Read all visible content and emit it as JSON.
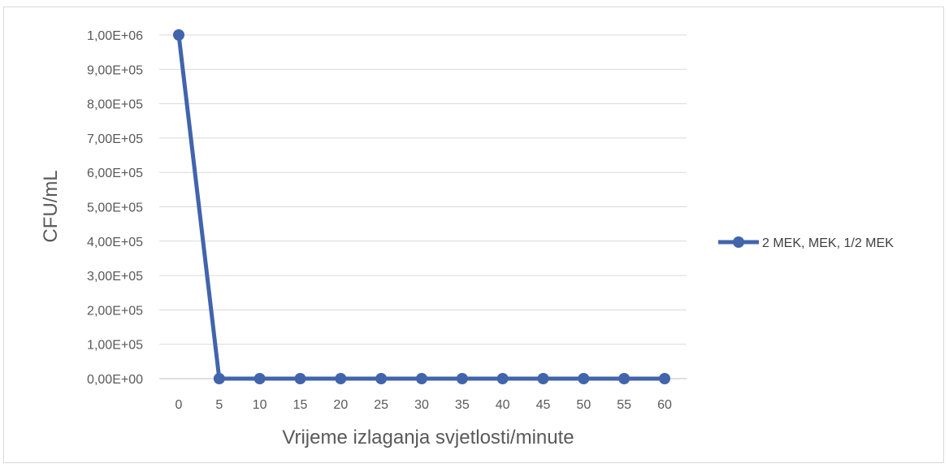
{
  "chart_data": {
    "type": "line",
    "title": "",
    "xlabel": "Vrijeme izlaganja svjetlosti/minute",
    "ylabel": "CFU/mL",
    "x": [
      "0",
      "5",
      "10",
      "15",
      "20",
      "25",
      "30",
      "35",
      "40",
      "45",
      "50",
      "55",
      "60"
    ],
    "ylim": [
      0,
      1000000
    ],
    "yticks": [
      0,
      100000,
      200000,
      300000,
      400000,
      500000,
      600000,
      700000,
      800000,
      900000,
      1000000
    ],
    "ytick_labels": [
      "0,00E+00",
      "1,00E+05",
      "2,00E+05",
      "3,00E+05",
      "4,00E+05",
      "5,00E+05",
      "6,00E+05",
      "7,00E+05",
      "8,00E+05",
      "9,00E+05",
      "1,00E+06"
    ],
    "grid": true,
    "legend_position": "right",
    "series": [
      {
        "name": "2 MEK, MEK, 1/2 MEK",
        "color": "#4164ac",
        "values": [
          1000000,
          0,
          0,
          0,
          0,
          0,
          0,
          0,
          0,
          0,
          0,
          0,
          0
        ]
      }
    ]
  }
}
